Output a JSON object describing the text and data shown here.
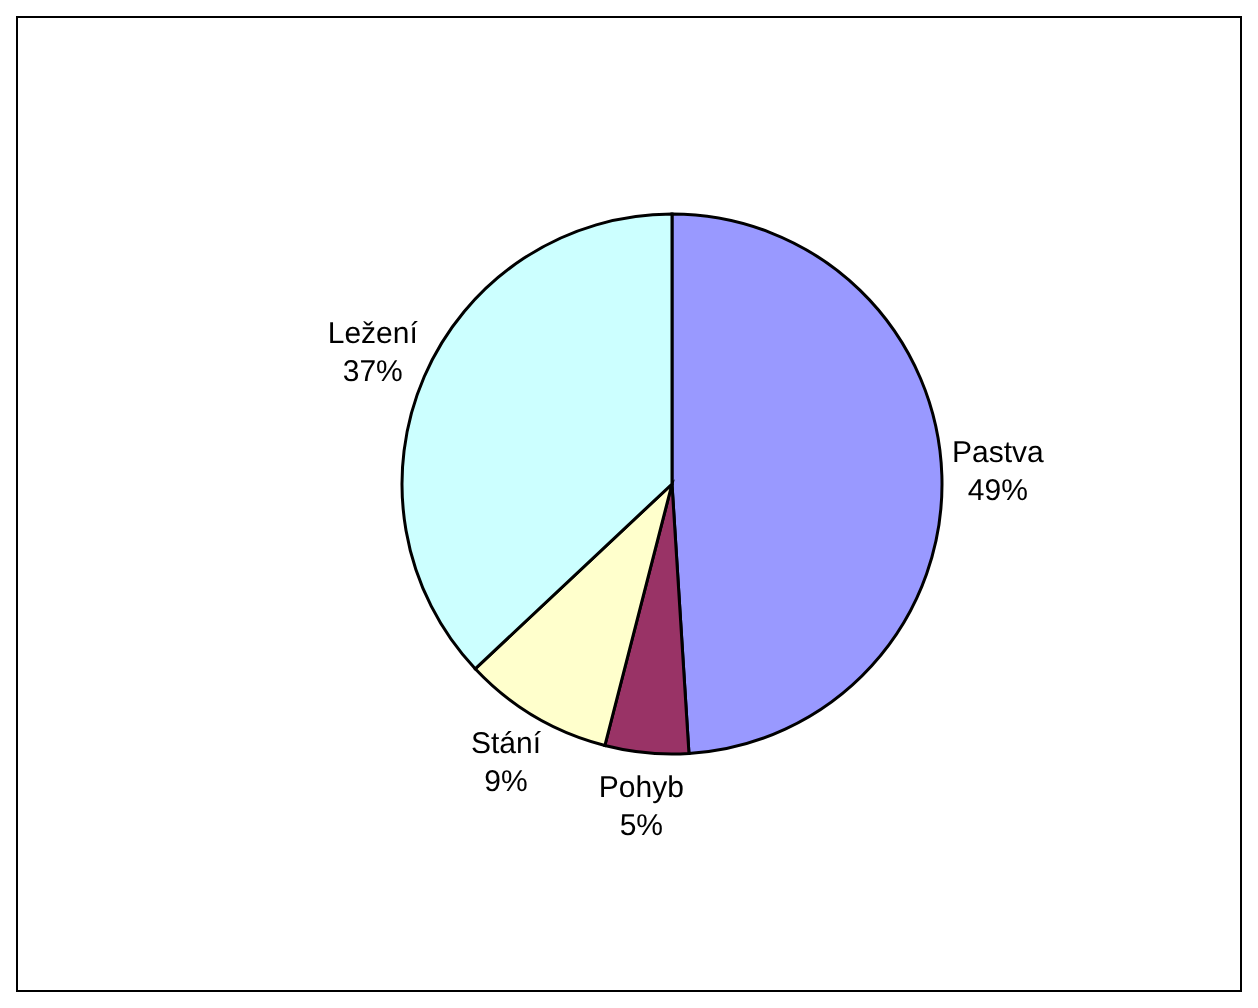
{
  "chart_data": {
    "type": "pie",
    "categories": [
      "Pastva",
      "Pohyb",
      "Stání",
      "Ležení"
    ],
    "values": [
      49,
      5,
      9,
      37
    ],
    "value_labels": [
      "49%",
      "5%",
      "9%",
      "37%"
    ],
    "colors": [
      "#9999ff",
      "#993366",
      "#ffffcc",
      "#ccffff"
    ]
  }
}
